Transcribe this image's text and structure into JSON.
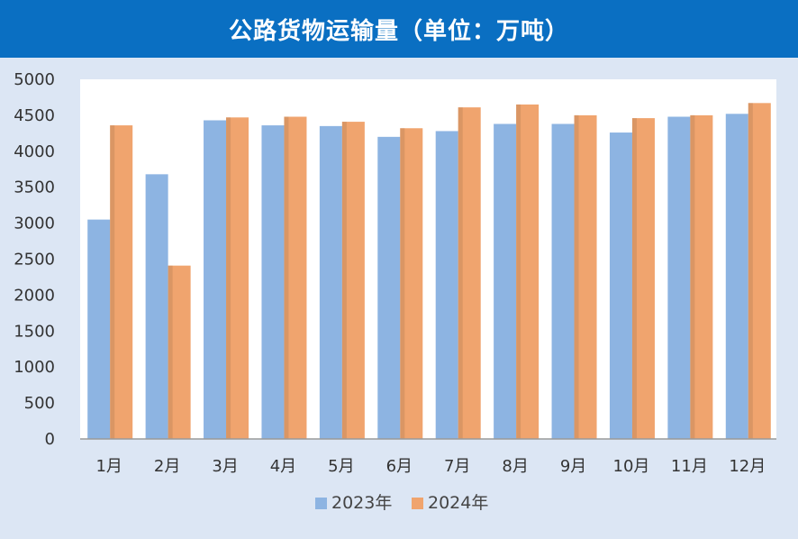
{
  "title": "公路货物运输量（单位：万吨）",
  "colors": {
    "header_bg": "#0a6fc2",
    "page_bg": "#dce6f4",
    "plot_bg": "#ffffff",
    "series_2023": "#8db4e2",
    "series_2024": "#f0a46e"
  },
  "chart_data": {
    "type": "bar",
    "title": "公路货物运输量（单位：万吨）",
    "categories": [
      "1月",
      "2月",
      "3月",
      "4月",
      "5月",
      "6月",
      "7月",
      "8月",
      "9月",
      "10月",
      "11月",
      "12月"
    ],
    "series": [
      {
        "name": "2023年",
        "color": "#8db4e2",
        "values": [
          3050,
          3680,
          4430,
          4360,
          4350,
          4200,
          4280,
          4380,
          4380,
          4260,
          4480,
          4520
        ]
      },
      {
        "name": "2024年",
        "color": "#f0a46e",
        "values": [
          4360,
          2410,
          4470,
          4480,
          4410,
          4320,
          4610,
          4650,
          4500,
          4460,
          4500,
          4670
        ]
      }
    ],
    "yticks": [
      0,
      500,
      1000,
      1500,
      2000,
      2500,
      3000,
      3500,
      4000,
      4500,
      5000
    ],
    "ylim": [
      0,
      5000
    ],
    "grid": false,
    "legend": "bottom"
  }
}
